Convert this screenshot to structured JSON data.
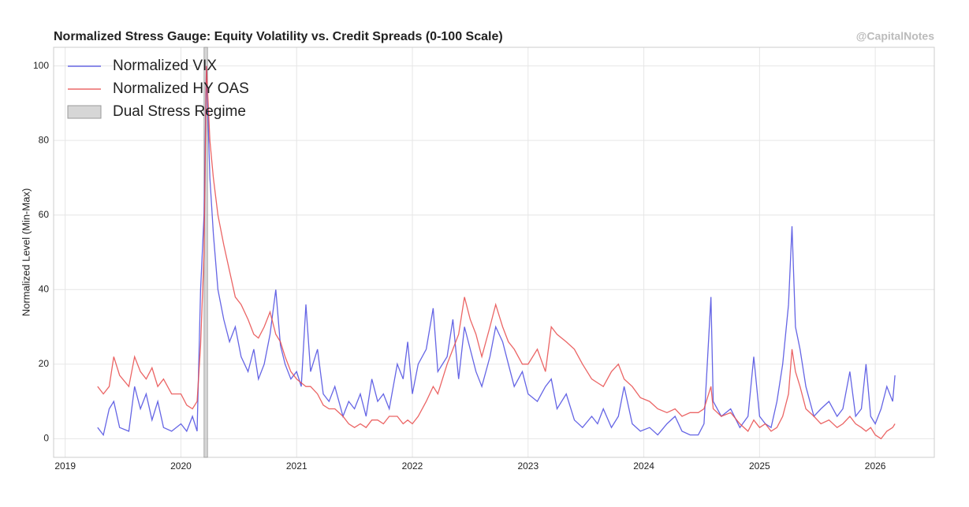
{
  "chart_data": {
    "type": "line",
    "title": "Normalized Stress Gauge: Equity Volatility vs. Credit Spreads (0-100 Scale)",
    "watermark": "@CapitalNotes",
    "y_label": "Normalized Level (Min-Max)",
    "x": [
      2019.28,
      2019.33,
      2019.38,
      2019.42,
      2019.47,
      2019.55,
      2019.6,
      2019.65,
      2019.7,
      2019.75,
      2019.8,
      2019.85,
      2019.92,
      2020.0,
      2020.05,
      2020.1,
      2020.14,
      2020.17,
      2020.2,
      2020.22,
      2020.25,
      2020.28,
      2020.32,
      2020.37,
      2020.42,
      2020.47,
      2020.52,
      2020.58,
      2020.63,
      2020.67,
      2020.72,
      2020.77,
      2020.82,
      2020.86,
      2020.9,
      2020.95,
      2021.0,
      2021.04,
      2021.08,
      2021.12,
      2021.18,
      2021.23,
      2021.28,
      2021.33,
      2021.4,
      2021.45,
      2021.5,
      2021.55,
      2021.6,
      2021.65,
      2021.7,
      2021.75,
      2021.8,
      2021.87,
      2021.92,
      2021.96,
      2022.0,
      2022.05,
      2022.12,
      2022.18,
      2022.22,
      2022.3,
      2022.35,
      2022.4,
      2022.45,
      2022.5,
      2022.55,
      2022.6,
      2022.67,
      2022.72,
      2022.78,
      2022.83,
      2022.88,
      2022.95,
      2023.0,
      2023.08,
      2023.15,
      2023.2,
      2023.25,
      2023.33,
      2023.4,
      2023.47,
      2023.55,
      2023.6,
      2023.65,
      2023.72,
      2023.78,
      2023.83,
      2023.9,
      2023.97,
      2024.05,
      2024.12,
      2024.2,
      2024.27,
      2024.33,
      2024.4,
      2024.47,
      2024.52,
      2024.58,
      2024.6,
      2024.67,
      2024.75,
      2024.83,
      2024.9,
      2024.95,
      2025.0,
      2025.05,
      2025.1,
      2025.15,
      2025.2,
      2025.25,
      2025.28,
      2025.31,
      2025.35,
      2025.4,
      2025.47,
      2025.53,
      2025.6,
      2025.67,
      2025.72,
      2025.78,
      2025.83,
      2025.88,
      2025.92,
      2025.96,
      2026.0,
      2026.05,
      2026.1,
      2026.15,
      2026.17
    ],
    "series": [
      {
        "name": "Normalized VIX",
        "color": "#4a4ae0",
        "values": [
          3,
          1,
          8,
          10,
          3,
          2,
          14,
          8,
          12,
          5,
          10,
          3,
          2,
          4,
          2,
          6,
          2,
          40,
          60,
          100,
          70,
          55,
          40,
          32,
          26,
          30,
          22,
          18,
          24,
          16,
          20,
          28,
          40,
          25,
          20,
          16,
          18,
          14,
          36,
          18,
          24,
          12,
          10,
          14,
          6,
          10,
          8,
          12,
          6,
          16,
          10,
          12,
          8,
          20,
          16,
          26,
          12,
          20,
          24,
          35,
          18,
          22,
          32,
          16,
          30,
          24,
          18,
          14,
          22,
          30,
          26,
          20,
          14,
          18,
          12,
          10,
          14,
          16,
          8,
          12,
          5,
          3,
          6,
          4,
          8,
          3,
          6,
          14,
          4,
          2,
          3,
          1,
          4,
          6,
          2,
          1,
          1,
          4,
          38,
          10,
          6,
          8,
          3,
          6,
          22,
          6,
          4,
          3,
          10,
          20,
          36,
          57,
          30,
          24,
          14,
          6,
          8,
          10,
          6,
          8,
          18,
          6,
          8,
          20,
          6,
          4,
          8,
          14,
          10,
          17
        ]
      },
      {
        "name": "Normalized HY OAS",
        "color": "#e84a4a",
        "values": [
          14,
          12,
          14,
          22,
          17,
          14,
          22,
          18,
          16,
          19,
          14,
          16,
          12,
          12,
          9,
          8,
          10,
          25,
          50,
          100,
          80,
          70,
          60,
          52,
          45,
          38,
          36,
          32,
          28,
          27,
          30,
          34,
          28,
          26,
          22,
          18,
          16,
          15,
          14,
          14,
          12,
          9,
          8,
          8,
          6,
          4,
          3,
          4,
          3,
          5,
          5,
          4,
          6,
          6,
          4,
          5,
          4,
          6,
          10,
          14,
          12,
          20,
          24,
          28,
          38,
          32,
          28,
          22,
          30,
          36,
          30,
          26,
          24,
          20,
          20,
          24,
          18,
          30,
          28,
          26,
          24,
          20,
          16,
          15,
          14,
          18,
          20,
          16,
          14,
          11,
          10,
          8,
          7,
          8,
          6,
          7,
          7,
          8,
          14,
          8,
          6,
          7,
          4,
          2,
          5,
          3,
          4,
          2,
          3,
          6,
          12,
          24,
          18,
          14,
          8,
          6,
          4,
          5,
          3,
          4,
          6,
          4,
          3,
          2,
          3,
          1,
          0,
          2,
          3,
          4
        ]
      }
    ],
    "region": {
      "name": "Dual Stress Regime",
      "color": "#bbbbbb",
      "spans": [
        [
          2020.2,
          2020.23
        ]
      ]
    },
    "xlim": [
      2018.9,
      2026.51
    ],
    "xticks": [
      2019,
      2020,
      2021,
      2022,
      2023,
      2024,
      2025,
      2026
    ],
    "ylim": [
      -5,
      105
    ],
    "yticks": [
      0,
      20,
      40,
      60,
      80,
      100
    ],
    "grid": true,
    "legend": "upper left"
  }
}
